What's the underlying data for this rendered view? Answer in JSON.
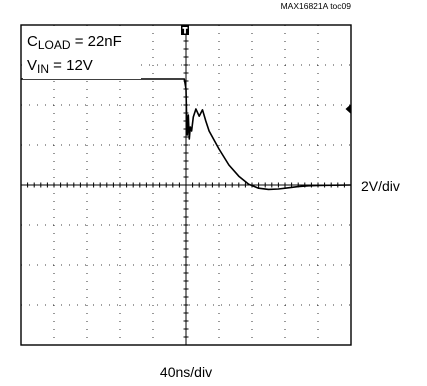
{
  "figure_id": "MAX16821A toc09",
  "annotations": {
    "c_load_main": "C",
    "c_load_sub": "LOAD",
    "c_load_value": " = 22nF",
    "v_in_main": "V",
    "v_in_sub": "IN",
    "v_in_value": " = 12V"
  },
  "chart_data": {
    "type": "line",
    "title": "",
    "xlabel": "40ns/div",
    "ylabel": "2V/div",
    "x_units": "divisions",
    "y_units": "divisions above center",
    "xlim": [
      0,
      10
    ],
    "ylim": [
      -4,
      4
    ],
    "divisions": {
      "horizontal": 10,
      "vertical": 8
    },
    "trigger_position_div": 5,
    "ground_marker_level_div": 1.9,
    "grid": "dotted",
    "series": [
      {
        "name": "",
        "points": [
          [
            0.0,
            2.65
          ],
          [
            1.0,
            2.65
          ],
          [
            2.0,
            2.65
          ],
          [
            3.0,
            2.65
          ],
          [
            4.0,
            2.65
          ],
          [
            4.95,
            2.65
          ],
          [
            5.0,
            2.4
          ],
          [
            5.02,
            1.6
          ],
          [
            5.04,
            1.25
          ],
          [
            5.07,
            1.75
          ],
          [
            5.1,
            1.15
          ],
          [
            5.13,
            1.45
          ],
          [
            5.17,
            1.35
          ],
          [
            5.22,
            1.7
          ],
          [
            5.3,
            1.9
          ],
          [
            5.4,
            1.72
          ],
          [
            5.5,
            1.88
          ],
          [
            5.6,
            1.6
          ],
          [
            5.7,
            1.35
          ],
          [
            6.0,
            0.9
          ],
          [
            6.3,
            0.5
          ],
          [
            6.6,
            0.22
          ],
          [
            6.9,
            0.02
          ],
          [
            7.2,
            -0.08
          ],
          [
            7.5,
            -0.11
          ],
          [
            7.8,
            -0.1
          ],
          [
            8.1,
            -0.07
          ],
          [
            8.4,
            -0.04
          ],
          [
            8.7,
            -0.02
          ],
          [
            9.0,
            -0.01
          ],
          [
            10.0,
            0.0
          ]
        ]
      }
    ]
  }
}
